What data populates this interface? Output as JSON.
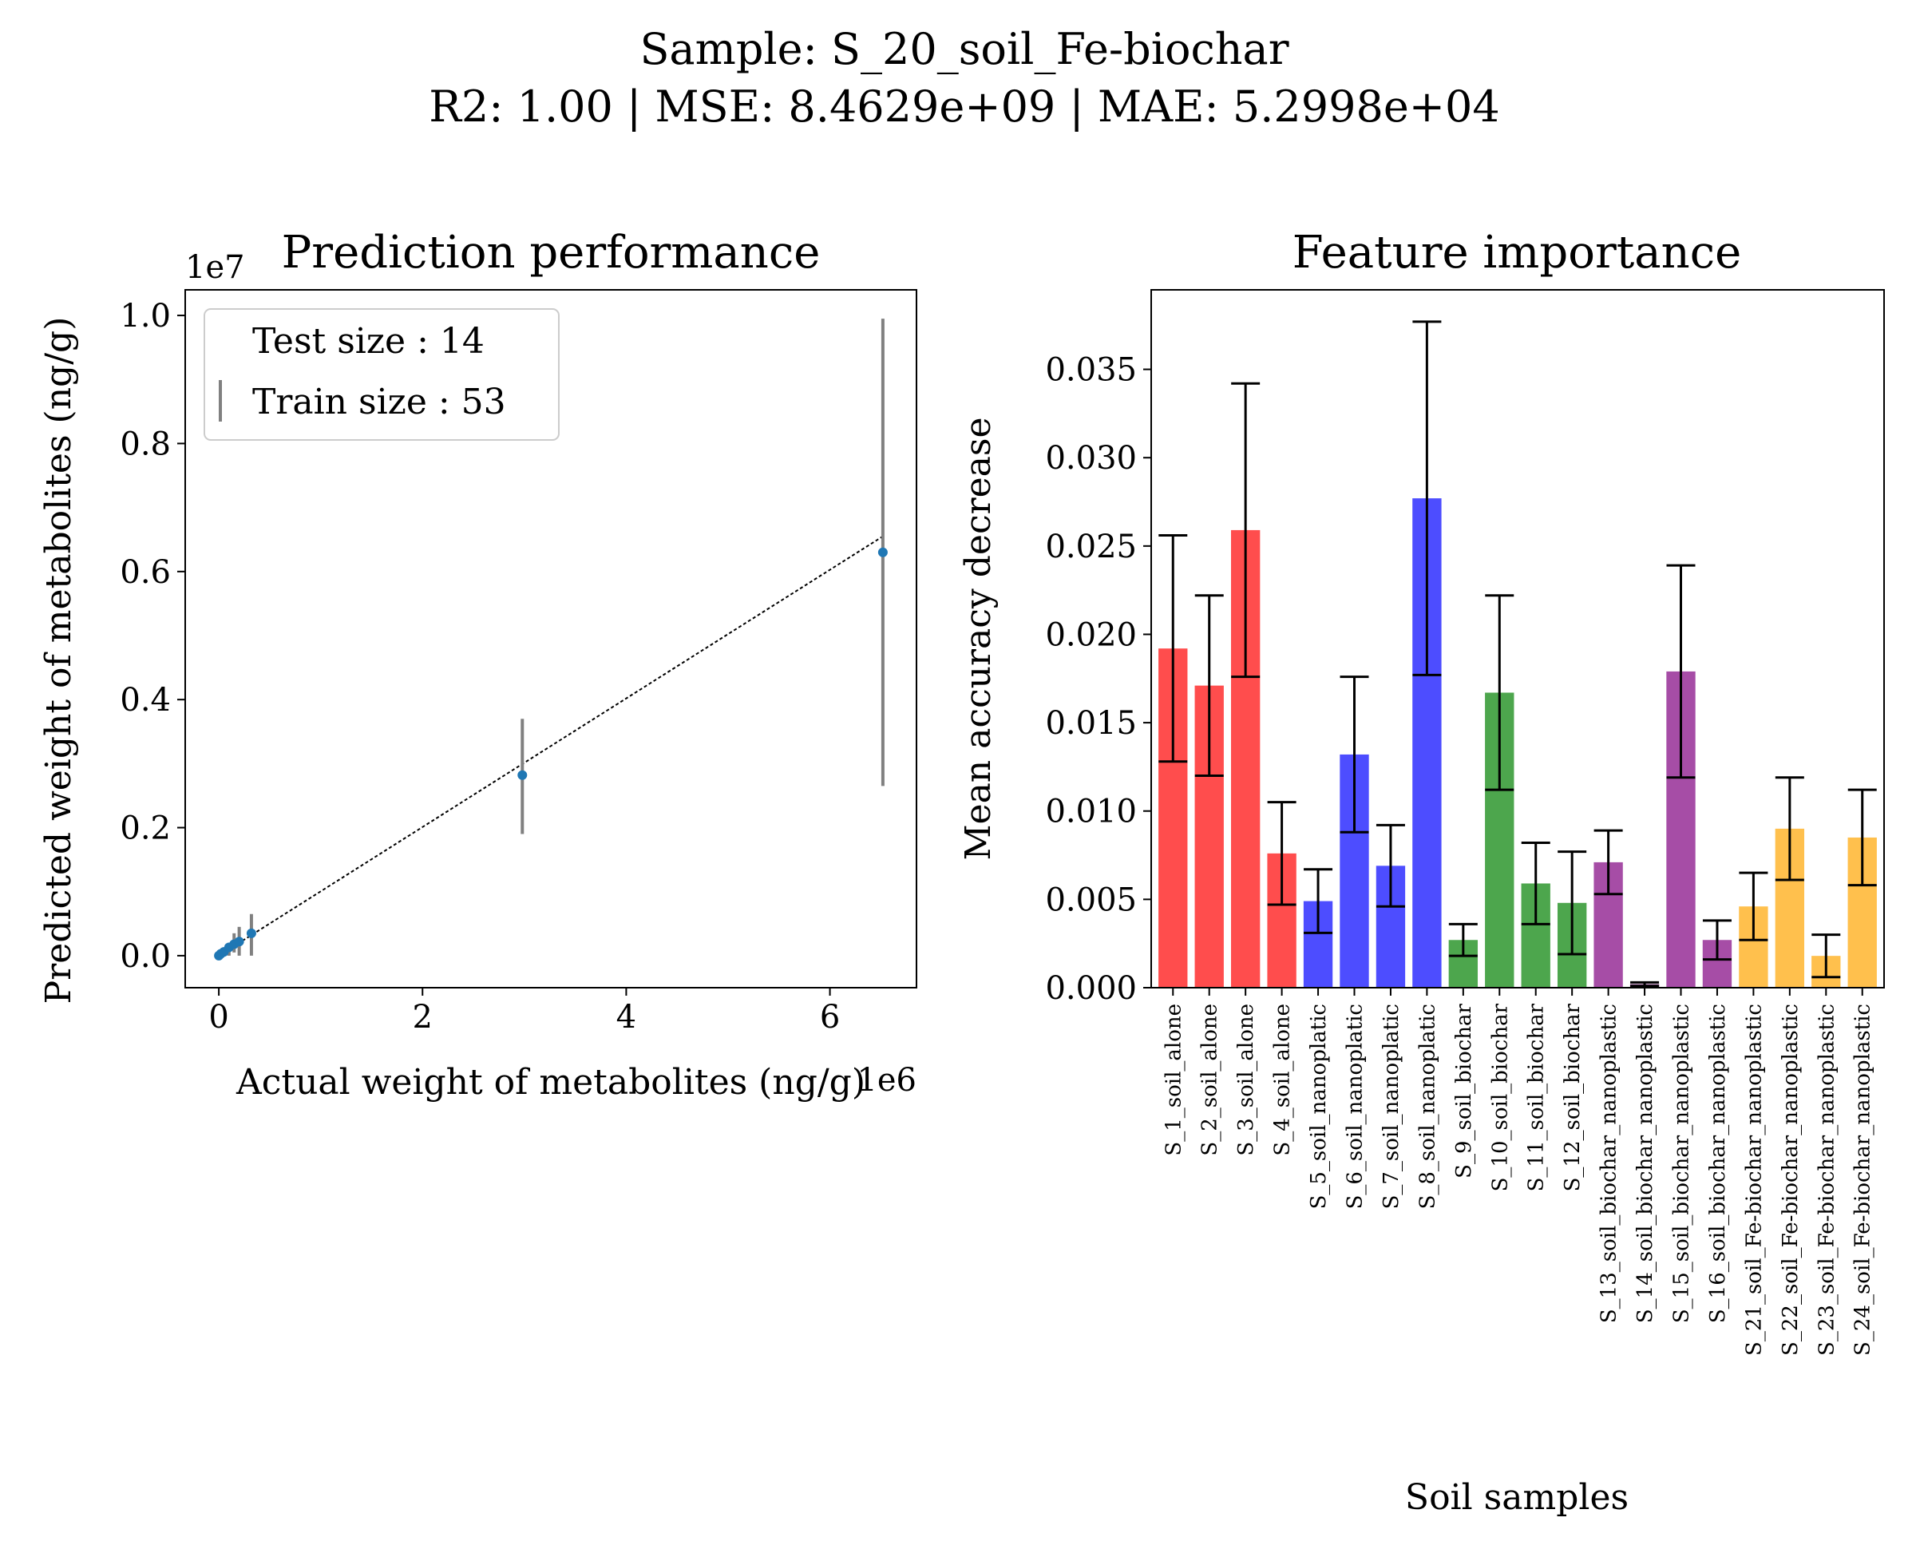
{
  "suptitle": {
    "line1": "Sample: S_20_soil_Fe-biochar",
    "line2": "R2: 1.00 | MSE: 8.4629e+09 | MAE: 5.2998e+04"
  },
  "chart_data": [
    {
      "type": "scatter",
      "title": "Prediction performance",
      "xlabel": "Actual weight of metabolites (ng/g)",
      "ylabel": "Predicted weight of metabolites (ng/g)",
      "x_offset_label": "1e6",
      "y_offset_label": "1e7",
      "x_scale": 1000000,
      "y_scale": 10000000,
      "xlim": [
        -0.33,
        6.85
      ],
      "ylim": [
        -0.05,
        1.04
      ],
      "xticks": [
        0,
        2,
        4,
        6
      ],
      "yticks": [
        0.0,
        0.2,
        0.4,
        0.6,
        0.8,
        1.0
      ],
      "xtick_labels": [
        "0",
        "2",
        "4",
        "6"
      ],
      "ytick_labels": [
        "0.0",
        "0.2",
        "0.4",
        "0.6",
        "0.8",
        "1.0"
      ],
      "point_color": "#1f77b4",
      "errorbar_color": "#808080",
      "points": [
        {
          "x": 0.0,
          "y": 0.0,
          "err_low": 0.0,
          "err_high": 0.0
        },
        {
          "x": 0.02,
          "y": 0.003,
          "err_low": 0.0,
          "err_high": 0.005
        },
        {
          "x": 0.05,
          "y": 0.006,
          "err_low": 0.0,
          "err_high": 0.01
        },
        {
          "x": 0.1,
          "y": 0.013,
          "err_low": 0.0,
          "err_high": 0.02
        },
        {
          "x": 0.15,
          "y": 0.018,
          "err_low": 0.005,
          "err_high": 0.035
        },
        {
          "x": 0.2,
          "y": 0.022,
          "err_low": 0.0,
          "err_high": 0.045
        },
        {
          "x": 0.32,
          "y": 0.035,
          "err_low": 0.0,
          "err_high": 0.065
        },
        {
          "x": 2.98,
          "y": 0.282,
          "err_low": 0.19,
          "err_high": 0.37
        },
        {
          "x": 6.52,
          "y": 0.63,
          "err_low": 0.265,
          "err_high": 0.995
        }
      ],
      "fit_line": {
        "x": [
          0.0,
          6.52
        ],
        "y": [
          0.0,
          0.655
        ]
      },
      "legend": {
        "placement": "upper-left",
        "entries": [
          "Test size : 14",
          "Train size : 53"
        ]
      }
    },
    {
      "type": "bar",
      "title": "Feature importance",
      "xlabel": "Soil samples",
      "ylabel": "Mean accuracy decrease",
      "ylim": [
        0,
        0.0395
      ],
      "yticks": [
        0.0,
        0.005,
        0.01,
        0.015,
        0.02,
        0.025,
        0.03,
        0.035
      ],
      "ytick_labels": [
        "0.000",
        "0.005",
        "0.010",
        "0.015",
        "0.020",
        "0.025",
        "0.030",
        "0.035"
      ],
      "categories": [
        "S_1_soil_alone",
        "S_2_soil_alone",
        "S_3_soil_alone",
        "S_4_soil_alone",
        "S_5_soil_nanoplatic",
        "S_6_soil_nanoplatic",
        "S_7_soil_nanoplatic",
        "S_8_soil_nanoplatic",
        "S_9_soil_biochar",
        "S_10_soil_biochar",
        "S_11_soil_biochar",
        "S_12_soil_biochar",
        "S_13_soil_biochar_nanoplastic",
        "S_14_soil_biochar_nanoplastic",
        "S_15_soil_biochar_nanoplastic",
        "S_16_soil_biochar_nanoplastic",
        "S_21_soil_Fe-biochar_nanoplastic",
        "S_22_soil_Fe-biochar_nanoplastic",
        "S_23_soil_Fe-biochar_nanoplastic",
        "S_24_soil_Fe-biochar_nanoplastic"
      ],
      "values": [
        0.0192,
        0.0171,
        0.0259,
        0.0076,
        0.0049,
        0.0132,
        0.0069,
        0.0277,
        0.0027,
        0.0167,
        0.0059,
        0.0048,
        0.0071,
        0.0002,
        0.0179,
        0.0027,
        0.0046,
        0.009,
        0.0018,
        0.0085
      ],
      "errors": [
        0.0064,
        0.0051,
        0.0083,
        0.0029,
        0.0018,
        0.0044,
        0.0023,
        0.01,
        0.0009,
        0.0055,
        0.0023,
        0.0029,
        0.0018,
        0.0001,
        0.006,
        0.0011,
        0.0019,
        0.0029,
        0.0012,
        0.0027
      ],
      "colors": [
        "#ff4d4d",
        "#ff4d4d",
        "#ff4d4d",
        "#ff4d4d",
        "#4d4dff",
        "#4d4dff",
        "#4d4dff",
        "#4d4dff",
        "#4da64d",
        "#4da64d",
        "#4da64d",
        "#4da64d",
        "#a64da6",
        "#a64da6",
        "#a64da6",
        "#a64da6",
        "#ffc04d",
        "#ffc04d",
        "#ffc04d",
        "#ffc04d"
      ],
      "errorbar_color": "#000000"
    }
  ]
}
